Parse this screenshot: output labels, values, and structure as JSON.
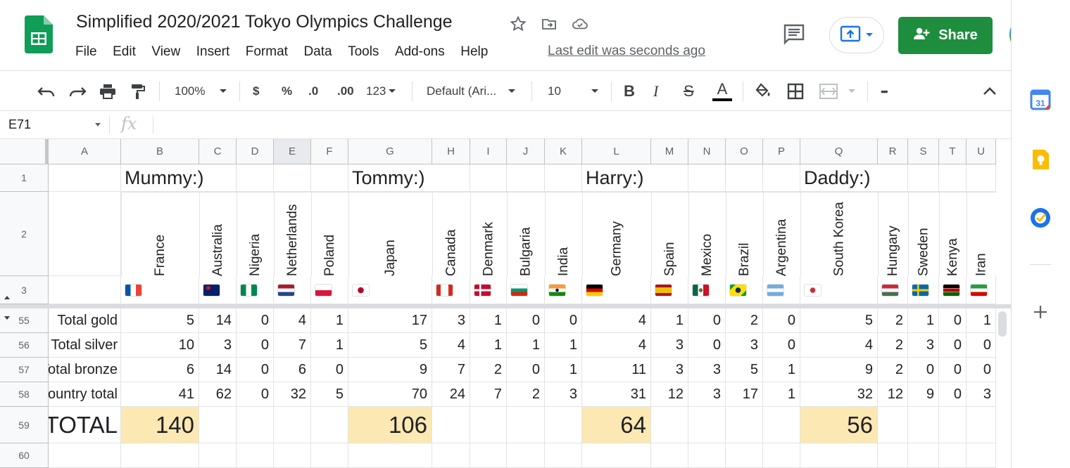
{
  "doc": {
    "title": "Simplified 2020/2021 Tokyo Olympics Challenge",
    "last_edit": "Last edit was seconds ago",
    "share_label": "Share"
  },
  "menu": [
    "File",
    "Edit",
    "View",
    "Insert",
    "Format",
    "Data",
    "Tools",
    "Add-ons",
    "Help"
  ],
  "toolbar": {
    "zoom": "100%",
    "currency": "$",
    "percent": "%",
    "dec_decrease": ".0",
    "dec_increase": ".00",
    "number_format": "123",
    "font": "Default (Ari...",
    "font_size": "10",
    "bold": "B",
    "italic": "I",
    "strike": "S",
    "text_color": "A",
    "more": "•••"
  },
  "formula_bar": {
    "name_box": "E71",
    "fx": "fx",
    "value": ""
  },
  "columns": [
    "A",
    "B",
    "C",
    "D",
    "E",
    "F",
    "G",
    "H",
    "I",
    "J",
    "K",
    "L",
    "M",
    "N",
    "O",
    "P",
    "Q",
    "R",
    "S",
    "T",
    "U"
  ],
  "row_numbers": [
    "1",
    "2",
    "3",
    "55",
    "56",
    "57",
    "58",
    "59",
    "60"
  ],
  "players": [
    {
      "name": "Mummy:)",
      "total": "140"
    },
    {
      "name": "Tommy:)",
      "total": "106"
    },
    {
      "name": "Harry:)",
      "total": "64"
    },
    {
      "name": "Daddy:)",
      "total": "56"
    }
  ],
  "countries": [
    "France",
    "Australia",
    "Nigeria",
    "Netherlands",
    "Poland",
    "Japan",
    "Canada",
    "Denmark",
    "Bulgaria",
    "India",
    "Germany",
    "Spain",
    "Mexico",
    "Brazil",
    "Argentina",
    "South Korea",
    "Hungary",
    "Sweden",
    "Kenya",
    "Iran"
  ],
  "flags": [
    "flag-france",
    "flag-australia",
    "flag-nigeria",
    "flag-netherlands",
    "flag-poland",
    "flag-japan",
    "flag-canada",
    "flag-denmark",
    "flag-bulgaria",
    "flag-india",
    "flag-germany",
    "flag-spain",
    "flag-mexico",
    "flag-brazil",
    "flag-argentina",
    "flag-south-korea",
    "flag-hungary",
    "flag-sweden",
    "flag-kenya",
    "flag-iran"
  ],
  "row_labels": [
    "Total gold",
    "Total silver",
    "Total bronze",
    "Country total",
    "TOTAL"
  ],
  "medal_rows": [
    [
      "5",
      "14",
      "0",
      "4",
      "1",
      "17",
      "3",
      "1",
      "0",
      "0",
      "4",
      "1",
      "0",
      "2",
      "0",
      "5",
      "2",
      "1",
      "0",
      "1"
    ],
    [
      "10",
      "3",
      "0",
      "7",
      "1",
      "5",
      "4",
      "1",
      "1",
      "1",
      "4",
      "3",
      "0",
      "3",
      "0",
      "4",
      "2",
      "3",
      "0",
      "0"
    ],
    [
      "6",
      "14",
      "0",
      "6",
      "0",
      "9",
      "7",
      "2",
      "0",
      "1",
      "11",
      "3",
      "3",
      "5",
      "1",
      "9",
      "2",
      "0",
      "0",
      "0"
    ],
    [
      "41",
      "62",
      "0",
      "32",
      "5",
      "70",
      "24",
      "7",
      "2",
      "3",
      "31",
      "12",
      "3",
      "17",
      "1",
      "32",
      "12",
      "9",
      "0",
      "3"
    ]
  ],
  "colors": {
    "share_green": "#1e8e3e",
    "total_highlight": "#fce8b2",
    "sheets_green": "#0f9d58"
  }
}
